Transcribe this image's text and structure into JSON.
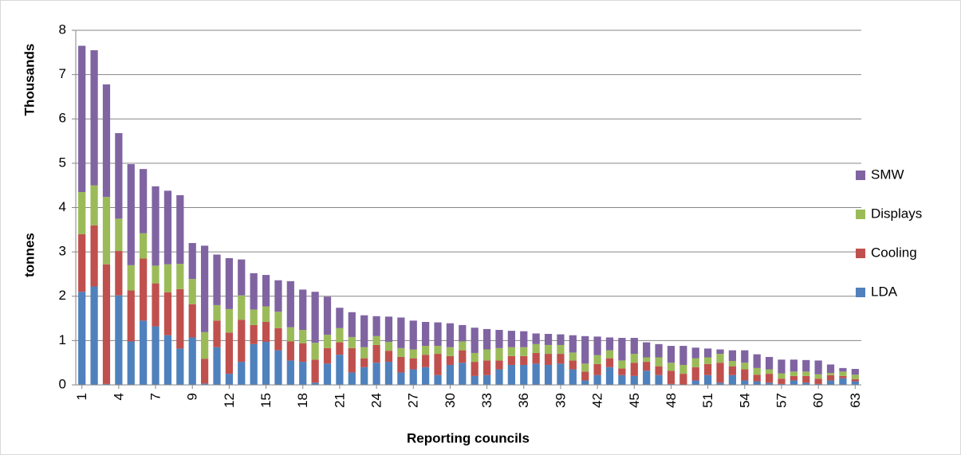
{
  "chart_data": {
    "type": "stacked-bar",
    "y_label": "tonnes",
    "y_unit_label": "Thousands",
    "x_label": "Reporting councils",
    "categories": [
      "1",
      null,
      null,
      "4",
      null,
      null,
      "7",
      null,
      null,
      "9",
      null,
      null,
      "12",
      null,
      null,
      "15",
      null,
      null,
      "18",
      null,
      null,
      "21",
      null,
      null,
      "24",
      null,
      null,
      "27",
      null,
      null,
      "30",
      null,
      null,
      "33",
      null,
      null,
      "36",
      null,
      null,
      "39",
      null,
      null,
      "42",
      null,
      null,
      "45",
      null,
      null,
      "48",
      null,
      null,
      "51",
      null,
      null,
      "54",
      null,
      null,
      "57",
      null,
      null,
      "60",
      null,
      null,
      "63"
    ],
    "series": [
      {
        "name": "LDA",
        "color": "#4f81bd",
        "values": [
          2.1,
          2.22,
          0.02,
          2.02,
          0.98,
          1.45,
          1.32,
          1.12,
          0.82,
          1.07,
          0.03,
          0.85,
          0.25,
          0.52,
          0.92,
          0.97,
          0.78,
          0.55,
          0.52,
          0.05,
          0.48,
          0.68,
          0.28,
          0.4,
          0.5,
          0.52,
          0.28,
          0.35,
          0.4,
          0.22,
          0.45,
          0.5,
          0.2,
          0.22,
          0.35,
          0.45,
          0.45,
          0.48,
          0.45,
          0.48,
          0.35,
          0.1,
          0.22,
          0.4,
          0.22,
          0.2,
          0.32,
          0.22,
          0.02,
          0.0,
          0.1,
          0.22,
          0.05,
          0.22,
          0.1,
          0.08,
          0.05,
          0.02,
          0.1,
          0.05,
          0.02,
          0.1,
          0.15,
          0.08
        ]
      },
      {
        "name": "Cooling",
        "color": "#c0504d",
        "values": [
          1.3,
          1.38,
          2.7,
          1.0,
          1.15,
          1.4,
          0.97,
          0.97,
          1.34,
          0.75,
          0.56,
          0.6,
          0.93,
          0.95,
          0.43,
          0.45,
          0.5,
          0.43,
          0.42,
          0.52,
          0.35,
          0.28,
          0.55,
          0.2,
          0.4,
          0.25,
          0.35,
          0.25,
          0.28,
          0.48,
          0.2,
          0.28,
          0.32,
          0.33,
          0.2,
          0.2,
          0.2,
          0.24,
          0.25,
          0.22,
          0.2,
          0.2,
          0.25,
          0.2,
          0.15,
          0.3,
          0.2,
          0.2,
          0.3,
          0.25,
          0.3,
          0.25,
          0.45,
          0.2,
          0.25,
          0.15,
          0.2,
          0.12,
          0.1,
          0.15,
          0.12,
          0.12,
          0.05,
          0.05
        ]
      },
      {
        "name": "Displays",
        "color": "#9bbb59",
        "values": [
          0.95,
          0.9,
          1.52,
          0.73,
          0.57,
          0.57,
          0.4,
          0.63,
          0.57,
          0.57,
          0.6,
          0.35,
          0.53,
          0.55,
          0.35,
          0.35,
          0.37,
          0.32,
          0.3,
          0.38,
          0.3,
          0.32,
          0.25,
          0.25,
          0.2,
          0.2,
          0.2,
          0.2,
          0.2,
          0.18,
          0.2,
          0.2,
          0.2,
          0.25,
          0.28,
          0.2,
          0.2,
          0.2,
          0.2,
          0.2,
          0.18,
          0.18,
          0.2,
          0.18,
          0.18,
          0.2,
          0.1,
          0.2,
          0.18,
          0.2,
          0.2,
          0.15,
          0.2,
          0.12,
          0.15,
          0.15,
          0.1,
          0.12,
          0.1,
          0.1,
          0.1,
          0.05,
          0.1,
          0.1
        ]
      },
      {
        "name": "SMW",
        "color": "#8064a2",
        "values": [
          3.3,
          3.05,
          2.54,
          1.93,
          2.28,
          1.45,
          1.79,
          1.66,
          1.55,
          0.81,
          1.95,
          1.14,
          1.15,
          0.81,
          0.82,
          0.71,
          0.71,
          1.04,
          0.91,
          1.15,
          0.86,
          0.46,
          0.56,
          0.72,
          0.45,
          0.57,
          0.69,
          0.65,
          0.54,
          0.53,
          0.54,
          0.37,
          0.57,
          0.46,
          0.41,
          0.37,
          0.36,
          0.24,
          0.25,
          0.24,
          0.39,
          0.62,
          0.42,
          0.29,
          0.51,
          0.36,
          0.34,
          0.3,
          0.38,
          0.43,
          0.24,
          0.2,
          0.1,
          0.24,
          0.28,
          0.31,
          0.28,
          0.31,
          0.27,
          0.26,
          0.31,
          0.19,
          0.08,
          0.13
        ]
      }
    ],
    "ylim": [
      0,
      8
    ],
    "yticks": [
      0,
      1,
      2,
      3,
      4,
      5,
      6,
      7,
      8
    ],
    "grid": true,
    "legend": "right"
  }
}
